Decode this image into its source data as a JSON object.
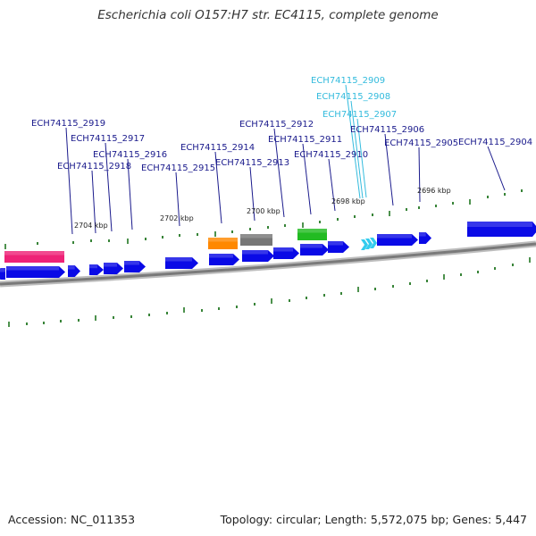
{
  "title": "Escherichia coli O157:H7 str. EC4115, complete genome",
  "footer": {
    "accession": "Accession: NC_011353",
    "summary": "Topology: circular; Length: 5,572,075 bp; Genes: 5,447"
  },
  "colors": {
    "cds": "#0a0ae6",
    "rna_highlight": "#33ccee",
    "pink": "#ee2277",
    "orange": "#ff8800",
    "gray": "#777777",
    "green": "#22bb22",
    "tick": "#227722",
    "label_dark": "#1a1a8c",
    "label_light": "#33bbdd"
  },
  "scale_labels": [
    {
      "name": "scale-2704",
      "text": "2704 kbp"
    },
    {
      "name": "scale-2702",
      "text": "2702 kbp"
    },
    {
      "name": "scale-2700",
      "text": "2700 kbp"
    },
    {
      "name": "scale-2698",
      "text": "2698 kbp"
    },
    {
      "name": "scale-2696",
      "text": "2696 kbp"
    }
  ],
  "gene_labels": [
    {
      "id": "ECH74115_2919",
      "text": "ECH74115_2919",
      "highlight": false
    },
    {
      "id": "ECH74115_2918",
      "text": "ECH74115_2918",
      "highlight": false
    },
    {
      "id": "ECH74115_2917",
      "text": "ECH74115_2917",
      "highlight": false
    },
    {
      "id": "ECH74115_2916",
      "text": "ECH74115_2916",
      "highlight": false
    },
    {
      "id": "ECH74115_2915",
      "text": "ECH74115_2915",
      "highlight": false
    },
    {
      "id": "ECH74115_2914",
      "text": "ECH74115_2914",
      "highlight": false
    },
    {
      "id": "ECH74115_2913",
      "text": "ECH74115_2913",
      "highlight": false
    },
    {
      "id": "ECH74115_2912",
      "text": "ECH74115_2912",
      "highlight": false
    },
    {
      "id": "ECH74115_2911",
      "text": "ECH74115_2911",
      "highlight": false
    },
    {
      "id": "ECH74115_2910",
      "text": "ECH74115_2910",
      "highlight": false
    },
    {
      "id": "ECH74115_2909",
      "text": "ECH74115_2909",
      "highlight": true
    },
    {
      "id": "ECH74115_2908",
      "text": "ECH74115_2908",
      "highlight": true
    },
    {
      "id": "ECH74115_2907",
      "text": "ECH74115_2907",
      "highlight": true
    },
    {
      "id": "ECH74115_2906",
      "text": "ECH74115_2906",
      "highlight": false
    },
    {
      "id": "ECH74115_2905",
      "text": "ECH74115_2905",
      "highlight": false
    },
    {
      "id": "ECH74115_2904",
      "text": "ECH74115_2904",
      "highlight": false
    }
  ]
}
